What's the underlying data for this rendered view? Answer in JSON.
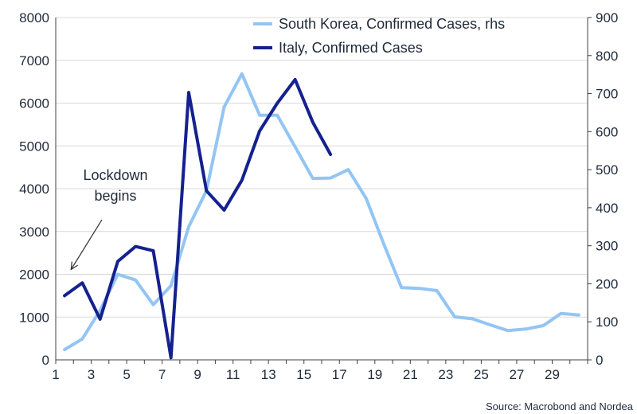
{
  "chart_data": {
    "type": "line",
    "title": "",
    "xlabel": "",
    "x_ticks": [
      1,
      3,
      5,
      7,
      9,
      11,
      13,
      15,
      17,
      19,
      21,
      23,
      25,
      27,
      29
    ],
    "xlim": [
      1,
      31
    ],
    "y_left": {
      "lim": [
        0,
        8000
      ],
      "ticks": [
        0,
        1000,
        2000,
        3000,
        4000,
        5000,
        6000,
        7000,
        8000
      ]
    },
    "y_right": {
      "lim": [
        0,
        900
      ],
      "ticks": [
        0,
        100,
        200,
        300,
        400,
        500,
        600,
        700,
        800,
        900
      ]
    },
    "grid": true,
    "legend_position": "top-right",
    "series": [
      {
        "name": "South Korea, Confirmed Cases, rhs",
        "axis": "right",
        "color": "#93c5f3",
        "x": [
          1.5,
          2.5,
          3.5,
          4.5,
          5.5,
          6.5,
          7.5,
          8.5,
          9.5,
          10.5,
          11.5,
          12.5,
          13.5,
          14.5,
          15.5,
          16.5,
          17.5,
          18.5,
          19.5,
          20.5,
          21.5,
          22.5,
          23.5,
          24.5,
          25.5,
          26.5,
          27.5,
          28.5,
          29.5,
          30.5
        ],
        "y": [
          27,
          55,
          130,
          225,
          210,
          145,
          195,
          350,
          445,
          665,
          752,
          643,
          643,
          560,
          477,
          478,
          500,
          425,
          305,
          190,
          188,
          182,
          113,
          108,
          92,
          77,
          81,
          90,
          122,
          118
        ]
      },
      {
        "name": "Italy, Confirmed Cases",
        "axis": "left",
        "color": "#14218f",
        "x": [
          1.5,
          2.5,
          3.5,
          4.5,
          5.5,
          6.5,
          7.5,
          8.5,
          9.5,
          10.5,
          11.5,
          12.5,
          13.5,
          14.5,
          15.5,
          16.5
        ],
        "y": [
          1500,
          1800,
          950,
          2300,
          2650,
          2550,
          50,
          6250,
          3950,
          3500,
          4200,
          5350,
          6000,
          6550,
          5550,
          4800
        ]
      }
    ],
    "annotations": [
      {
        "text_lines": [
          "Lockdown",
          "begins"
        ],
        "arrow_to": {
          "x": 2.0,
          "y": 2000,
          "axis": "left"
        }
      }
    ],
    "source": "Source: Macrobond and Nordea"
  }
}
